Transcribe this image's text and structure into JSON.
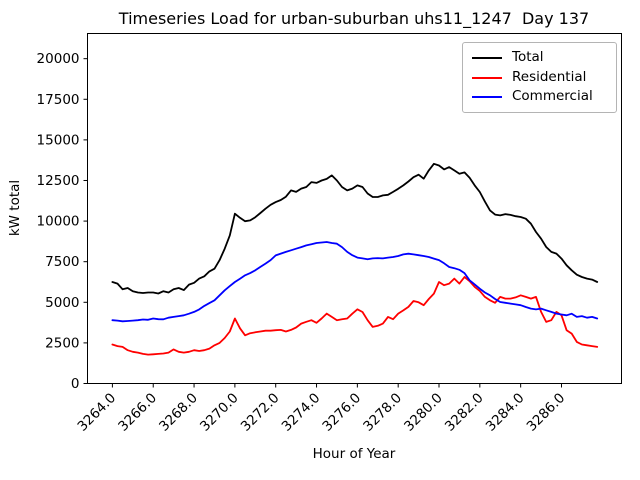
{
  "chart_data": {
    "type": "line",
    "title": "Timeseries Load for urban-suburban uhs11_1247  Day 137",
    "xlabel": "Hour of Year",
    "ylabel": "kW total",
    "grid": false,
    "legend_position": "upper right",
    "xlim": [
      3262.78,
      3288.94
    ],
    "ylim": [
      0,
      21550
    ],
    "xticks": [
      3264,
      3266,
      3268,
      3270,
      3272,
      3274,
      3276,
      3278,
      3280,
      3282,
      3284,
      3286
    ],
    "xtick_labels": [
      "3264.0",
      "3266.0",
      "3268.0",
      "3270.0",
      "3272.0",
      "3274.0",
      "3276.0",
      "3278.0",
      "3280.0",
      "3282.0",
      "3284.0",
      "3286.0"
    ],
    "yticks": [
      0,
      2500,
      5000,
      7500,
      10000,
      12500,
      15000,
      17500,
      20000
    ],
    "x": [
      3264.0,
      3264.25,
      3264.5,
      3264.75,
      3265.0,
      3265.25,
      3265.5,
      3265.75,
      3266.0,
      3266.25,
      3266.5,
      3266.75,
      3267.0,
      3267.25,
      3267.5,
      3267.75,
      3268.0,
      3268.25,
      3268.5,
      3268.75,
      3269.0,
      3269.25,
      3269.5,
      3269.75,
      3270.0,
      3270.25,
      3270.5,
      3270.75,
      3271.0,
      3271.25,
      3271.5,
      3271.75,
      3272.0,
      3272.25,
      3272.5,
      3272.75,
      3273.0,
      3273.25,
      3273.5,
      3273.75,
      3274.0,
      3274.25,
      3274.5,
      3274.75,
      3275.0,
      3275.25,
      3275.5,
      3275.75,
      3276.0,
      3276.25,
      3276.5,
      3276.75,
      3277.0,
      3277.25,
      3277.5,
      3277.75,
      3278.0,
      3278.25,
      3278.5,
      3278.75,
      3279.0,
      3279.25,
      3279.5,
      3279.75,
      3280.0,
      3280.25,
      3280.5,
      3280.75,
      3281.0,
      3281.25,
      3281.5,
      3281.75,
      3282.0,
      3282.25,
      3282.5,
      3282.75,
      3283.0,
      3283.25,
      3283.5,
      3283.75,
      3284.0,
      3284.25,
      3284.5,
      3284.75,
      3285.0,
      3285.25,
      3285.5,
      3285.75,
      3286.0,
      3286.25,
      3286.5,
      3286.75,
      3287.0,
      3287.25,
      3287.5,
      3287.75
    ],
    "series": [
      {
        "name": "Total",
        "color": "#000000",
        "values": [
          6250,
          6150,
          5800,
          5880,
          5680,
          5600,
          5570,
          5600,
          5600,
          5540,
          5680,
          5600,
          5800,
          5880,
          5750,
          6090,
          6200,
          6460,
          6600,
          6900,
          7070,
          7600,
          8300,
          9120,
          10455,
          10200,
          9995,
          10040,
          10240,
          10500,
          10765,
          11000,
          11170,
          11300,
          11500,
          11890,
          11800,
          12000,
          12100,
          12400,
          12350,
          12500,
          12600,
          12810,
          12500,
          12100,
          11890,
          12000,
          12200,
          12100,
          11700,
          11480,
          11480,
          11580,
          11620,
          11800,
          11990,
          12200,
          12440,
          12700,
          12855,
          12610,
          13120,
          13530,
          13425,
          13180,
          13325,
          13120,
          12915,
          13000,
          12670,
          12200,
          11790,
          11200,
          10660,
          10400,
          10350,
          10430,
          10380,
          10300,
          10250,
          10150,
          9840,
          9330,
          8915,
          8405,
          8100,
          8000,
          7690,
          7280,
          6970,
          6700,
          6560,
          6460,
          6400,
          6250
        ]
      },
      {
        "name": "Residential",
        "color": "#ff0000",
        "values": [
          2400,
          2300,
          2255,
          2050,
          1950,
          1905,
          1820,
          1780,
          1800,
          1820,
          1850,
          1905,
          2100,
          1950,
          1905,
          1950,
          2050,
          2000,
          2050,
          2150,
          2355,
          2500,
          2800,
          3200,
          4000,
          3400,
          2970,
          3100,
          3150,
          3200,
          3250,
          3250,
          3280,
          3300,
          3200,
          3300,
          3450,
          3690,
          3800,
          3895,
          3740,
          4000,
          4305,
          4100,
          3895,
          3950,
          4000,
          4300,
          4570,
          4400,
          3900,
          3485,
          3550,
          3690,
          4100,
          3960,
          4305,
          4500,
          4715,
          5080,
          5000,
          4820,
          5200,
          5535,
          6250,
          6050,
          6150,
          6460,
          6150,
          6560,
          6300,
          5945,
          5700,
          5330,
          5125,
          4970,
          5330,
          5230,
          5230,
          5300,
          5430,
          5330,
          5230,
          5330,
          4410,
          3790,
          3900,
          4410,
          4200,
          3280,
          3075,
          2560,
          2400,
          2355,
          2300,
          2255
        ]
      },
      {
        "name": "Commercial",
        "color": "#0000ff",
        "values": [
          3900,
          3870,
          3830,
          3850,
          3870,
          3900,
          3940,
          3920,
          4000,
          3960,
          3955,
          4050,
          4100,
          4150,
          4200,
          4300,
          4410,
          4560,
          4775,
          4950,
          5125,
          5430,
          5740,
          6000,
          6250,
          6450,
          6660,
          6800,
          6970,
          7180,
          7380,
          7600,
          7890,
          8000,
          8100,
          8200,
          8300,
          8400,
          8505,
          8570,
          8650,
          8680,
          8710,
          8650,
          8610,
          8400,
          8100,
          7900,
          7750,
          7700,
          7650,
          7700,
          7720,
          7700,
          7750,
          7790,
          7850,
          7950,
          7995,
          7950,
          7900,
          7850,
          7790,
          7690,
          7600,
          7400,
          7175,
          7100,
          7000,
          6800,
          6355,
          6100,
          5840,
          5600,
          5430,
          5200,
          5020,
          4970,
          4920,
          4870,
          4820,
          4710,
          4610,
          4560,
          4610,
          4510,
          4410,
          4305,
          4250,
          4200,
          4300,
          4100,
          4150,
          4050,
          4100,
          4000
        ]
      }
    ]
  }
}
